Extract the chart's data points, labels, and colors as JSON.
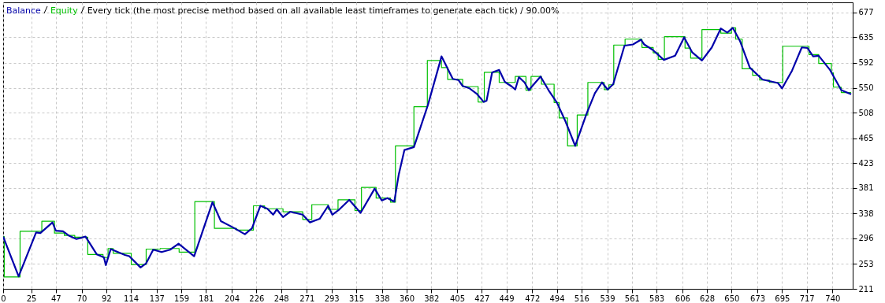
{
  "chart_data": {
    "type": "line",
    "title": "Every tick (the most precise method based on all available least timeframes to generate each tick) / 90.00%",
    "legend": "top left",
    "grid": true,
    "xlim": [
      0,
      758
    ],
    "ylim": [
      211,
      694
    ],
    "xticks": [
      0,
      25,
      47,
      70,
      92,
      114,
      137,
      159,
      181,
      204,
      226,
      248,
      271,
      293,
      315,
      338,
      360,
      382,
      405,
      427,
      449,
      472,
      494,
      516,
      539,
      561,
      583,
      606,
      628,
      650,
      673,
      695,
      717,
      740
    ],
    "yticks": [
      211,
      253,
      296,
      338,
      381,
      423,
      465,
      508,
      550,
      592,
      635,
      677
    ],
    "series": [
      {
        "name": "Balance",
        "type": "line",
        "color": "#0000aa",
        "x": [
          0,
          13.8,
          29.4,
          33.2,
          44,
          47,
          53.4,
          58.4,
          65.4,
          73.5,
          83.6,
          89.9,
          91.6,
          96,
          108.7,
          112.5,
          122.6,
          127.6,
          133.9,
          141.4,
          149,
          156.5,
          170.4,
          186.8,
          194.3,
          205.6,
          215.7,
          222,
          229.5,
          235.8,
          240.9,
          244.1,
          249.7,
          256,
          267.3,
          273.6,
          282.4,
          290,
          293.7,
          300,
          308.8,
          318.9,
          331.5,
          337.8,
          342.8,
          349,
          352.9,
          358,
          366.5,
          379,
          390,
          391.1,
          401.2,
          406.2,
          410,
          416.2,
          422.5,
          428.8,
          431.3,
          436.3,
          442.6,
          447.6,
          453.9,
          456.9,
          460.2,
          465.2,
          469,
          479.5,
          486.6,
          494.1,
          501.6,
          510.4,
          520.5,
          528,
          534.3,
          539.3,
          544.3,
          554.4,
          561.9,
          569,
          572,
          579.5,
          589.5,
          599.6,
          607.6,
          614.7,
          623.5,
          632.3,
          640.3,
          646.1,
          651.1,
          657.4,
          666.2,
          677.5,
          691.3,
          695,
          703.9,
          712.6,
          717.7,
          722.7,
          727.7,
          737.8,
          747.8,
          756.6
        ],
        "values": [
          299,
          232,
          306,
          305,
          323,
          309,
          308,
          301,
          295,
          299,
          269,
          264,
          251,
          278,
          268,
          266,
          247,
          254,
          277,
          273,
          277,
          287,
          266,
          357,
          325,
          314,
          303,
          313,
          351,
          346,
          336,
          345,
          332,
          341,
          336,
          323,
          329,
          351,
          336,
          345,
          361,
          339,
          380,
          360,
          364,
          358,
          403,
          445,
          450,
          521,
          595,
          603,
          565,
          563,
          553,
          549,
          540,
          526,
          528,
          576,
          580,
          560,
          552,
          547,
          568,
          559,
          546,
          569,
          546,
          525,
          494,
          452,
          506,
          541,
          559,
          547,
          556,
          621,
          623,
          631,
          623,
          614,
          597,
          604,
          635,
          610,
          596,
          618,
          650,
          643,
          651,
          629,
          584,
          564,
          558,
          549,
          579,
          618,
          617,
          603,
          604,
          580,
          546,
          539
        ]
      },
      {
        "name": "Equity",
        "type": "step",
        "color": "#00c000",
        "x": [
          0,
          1,
          15.1,
          34.5,
          45.8,
          54.6,
          63.9,
          75.5,
          89.1,
          93.6,
          98.2,
          114.3,
          127.6,
          140.2,
          157,
          171,
          188.5,
          208.2,
          223.3,
          233.3,
          249.7,
          267.3,
          275.4,
          290,
          298.8,
          313.9,
          319.7,
          332.8,
          345.6,
          350,
          366.5,
          378.5,
          391.1,
          396.6,
          410,
          423.8,
          429.3,
          442.6,
          456.9,
          466.5,
          471,
          480.3,
          491.6,
          496.1,
          503.6,
          512.2,
          521.7,
          536.3,
          540.5,
          544.8,
          554.9,
          570,
          580,
          584.5,
          590,
          608.4,
          613.4,
          623.5,
          640.3,
          649.8,
          653.6,
          659.4,
          668.7,
          675,
          683.7,
          695.6,
          719,
          727.7,
          739,
          740.8,
          747.8,
          756.6
        ],
        "values": [
          299,
          231,
          308,
          325,
          305,
          301,
          298,
          269,
          264,
          279,
          271,
          252,
          278,
          279,
          273,
          358,
          313,
          310,
          351,
          346,
          341,
          328,
          353,
          345,
          361,
          343,
          382,
          364,
          357,
          452,
          518,
          596,
          584,
          564,
          552,
          526,
          576,
          559,
          569,
          546,
          569,
          556,
          525,
          499,
          452,
          504,
          559,
          547,
          555,
          622,
          632,
          618,
          609,
          598,
          636,
          617,
          600,
          648,
          642,
          651,
          632,
          582,
          571,
          563,
          559,
          620,
          606,
          591,
          575,
          551,
          542,
          542
        ]
      }
    ]
  }
}
